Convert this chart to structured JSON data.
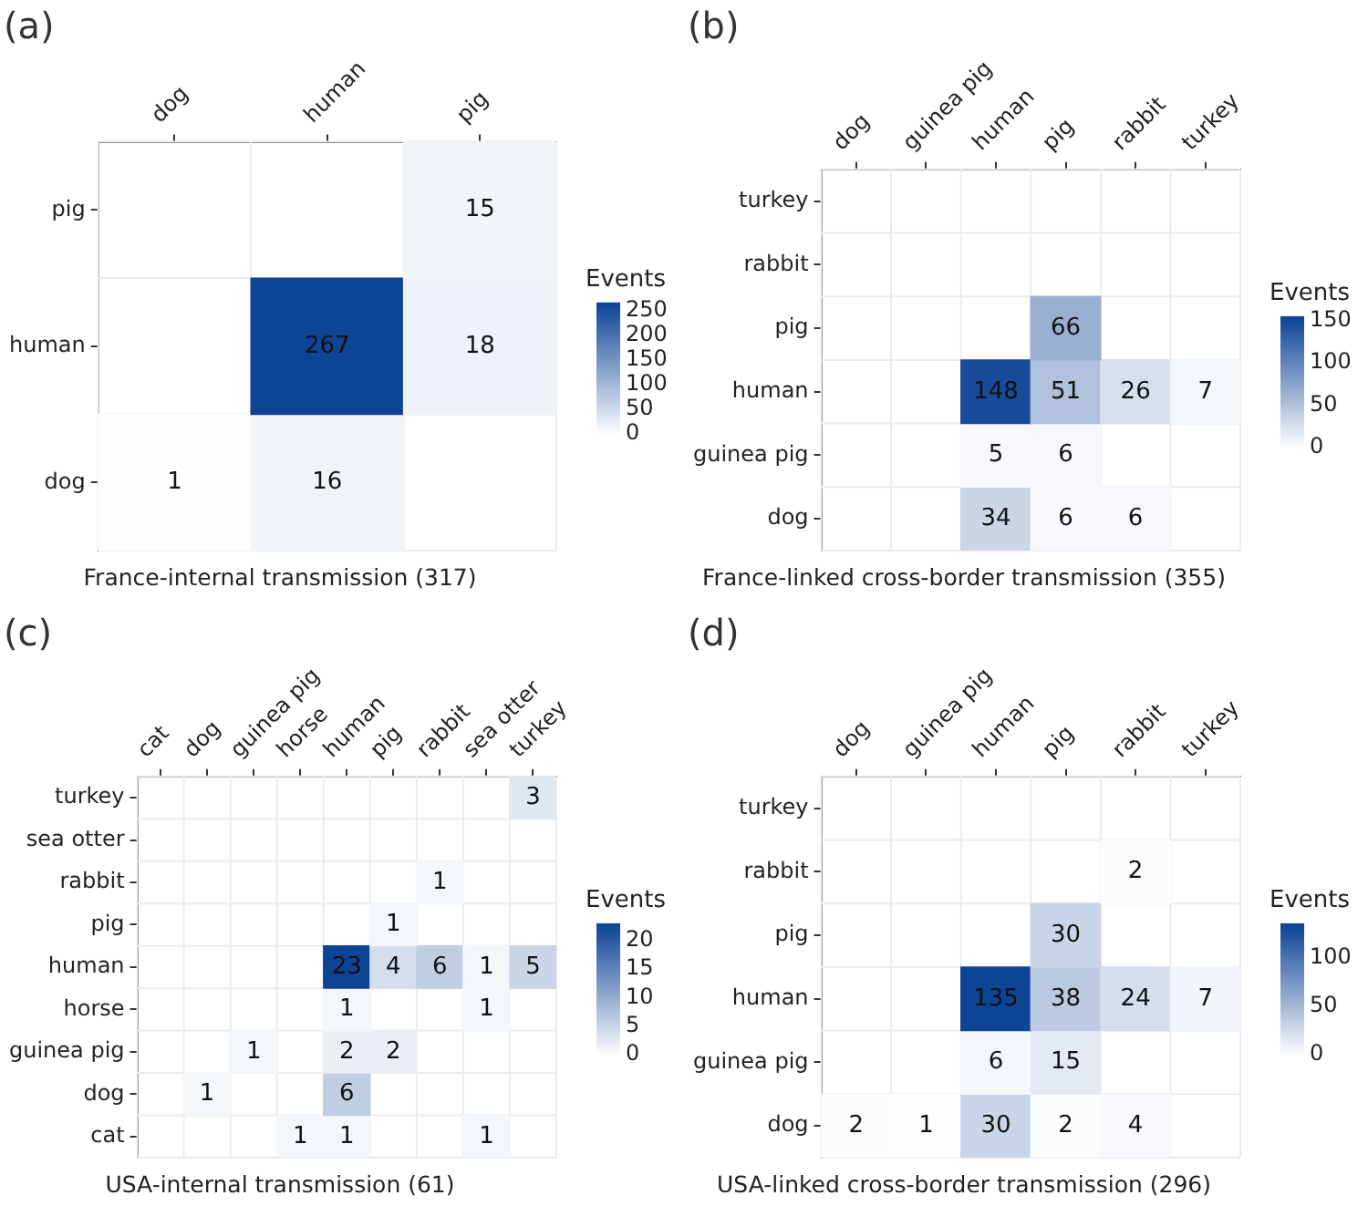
{
  "chart_data": [
    {
      "type": "heatmap",
      "title": "(a)",
      "xlabel": "France-internal transmission (317)",
      "clabel": "Events",
      "color": "#0d4496",
      "grid": true,
      "data_labels": true,
      "categories": [
        "dog",
        "human",
        "pig"
      ],
      "y_categories": [
        "pig",
        "human",
        "dog"
      ],
      "cells": [
        [
          null,
          null,
          15
        ],
        [
          null,
          267,
          18
        ],
        [
          1,
          16,
          null
        ]
      ],
      "clim": [
        0,
        267
      ],
      "cticks": [
        0,
        50,
        100,
        150,
        200,
        250
      ]
    },
    {
      "type": "heatmap",
      "title": "(b)",
      "xlabel": "France-linked cross-border transmission (355)",
      "clabel": "Events",
      "color": "#0d4496",
      "grid": true,
      "data_labels": true,
      "categories": [
        "dog",
        "guinea pig",
        "human",
        "pig",
        "rabbit",
        "turkey"
      ],
      "y_categories": [
        "turkey",
        "rabbit",
        "pig",
        "human",
        "guinea pig",
        "dog"
      ],
      "cells": [
        [
          null,
          null,
          null,
          null,
          null,
          null
        ],
        [
          null,
          null,
          null,
          null,
          null,
          null
        ],
        [
          null,
          null,
          null,
          66,
          null,
          null
        ],
        [
          null,
          null,
          148,
          51,
          26,
          7
        ],
        [
          null,
          null,
          5,
          6,
          null,
          null
        ],
        [
          null,
          null,
          34,
          6,
          6,
          null
        ]
      ],
      "clim": [
        0,
        155
      ],
      "cticks": [
        0,
        50,
        100,
        150
      ]
    },
    {
      "type": "heatmap",
      "title": "(c)",
      "xlabel": "USA-internal transmission (61)",
      "clabel": "Events",
      "color": "#0d4496",
      "grid": true,
      "data_labels": true,
      "categories": [
        "cat",
        "dog",
        "guinea pig",
        "horse",
        "human",
        "pig",
        "rabbit",
        "sea otter",
        "turkey"
      ],
      "y_categories": [
        "turkey",
        "sea otter",
        "rabbit",
        "pig",
        "human",
        "horse",
        "guinea pig",
        "dog",
        "cat"
      ],
      "cells": [
        [
          null,
          null,
          null,
          null,
          null,
          null,
          null,
          null,
          3
        ],
        [
          null,
          null,
          null,
          null,
          null,
          null,
          null,
          null,
          null
        ],
        [
          null,
          null,
          null,
          null,
          null,
          null,
          1,
          null,
          null
        ],
        [
          null,
          null,
          null,
          null,
          null,
          1,
          null,
          null,
          null
        ],
        [
          null,
          null,
          null,
          null,
          23,
          4,
          6,
          1,
          5
        ],
        [
          null,
          null,
          null,
          null,
          1,
          null,
          null,
          1,
          null
        ],
        [
          null,
          null,
          1,
          null,
          2,
          2,
          null,
          null,
          null
        ],
        [
          null,
          1,
          null,
          null,
          6,
          null,
          null,
          null,
          null
        ],
        [
          null,
          null,
          null,
          1,
          1,
          null,
          null,
          1,
          null
        ]
      ],
      "clim": [
        0,
        23
      ],
      "cticks": [
        0,
        5,
        10,
        15,
        20
      ]
    },
    {
      "type": "heatmap",
      "title": "(d)",
      "xlabel": "USA-linked cross-border transmission (296)",
      "clabel": "Events",
      "color": "#0d4496",
      "grid": true,
      "data_labels": true,
      "categories": [
        "dog",
        "guinea pig",
        "human",
        "pig",
        "rabbit",
        "turkey"
      ],
      "y_categories": [
        "turkey",
        "rabbit",
        "pig",
        "human",
        "guinea pig",
        "dog"
      ],
      "cells": [
        [
          null,
          null,
          null,
          null,
          null,
          null
        ],
        [
          null,
          null,
          null,
          null,
          2,
          null
        ],
        [
          null,
          null,
          null,
          30,
          null,
          null
        ],
        [
          null,
          null,
          135,
          38,
          24,
          7
        ],
        [
          null,
          null,
          6,
          15,
          null,
          null
        ],
        [
          2,
          1,
          30,
          2,
          4,
          null
        ]
      ],
      "clim": [
        0,
        135
      ],
      "cticks": [
        0,
        50,
        100
      ]
    }
  ]
}
